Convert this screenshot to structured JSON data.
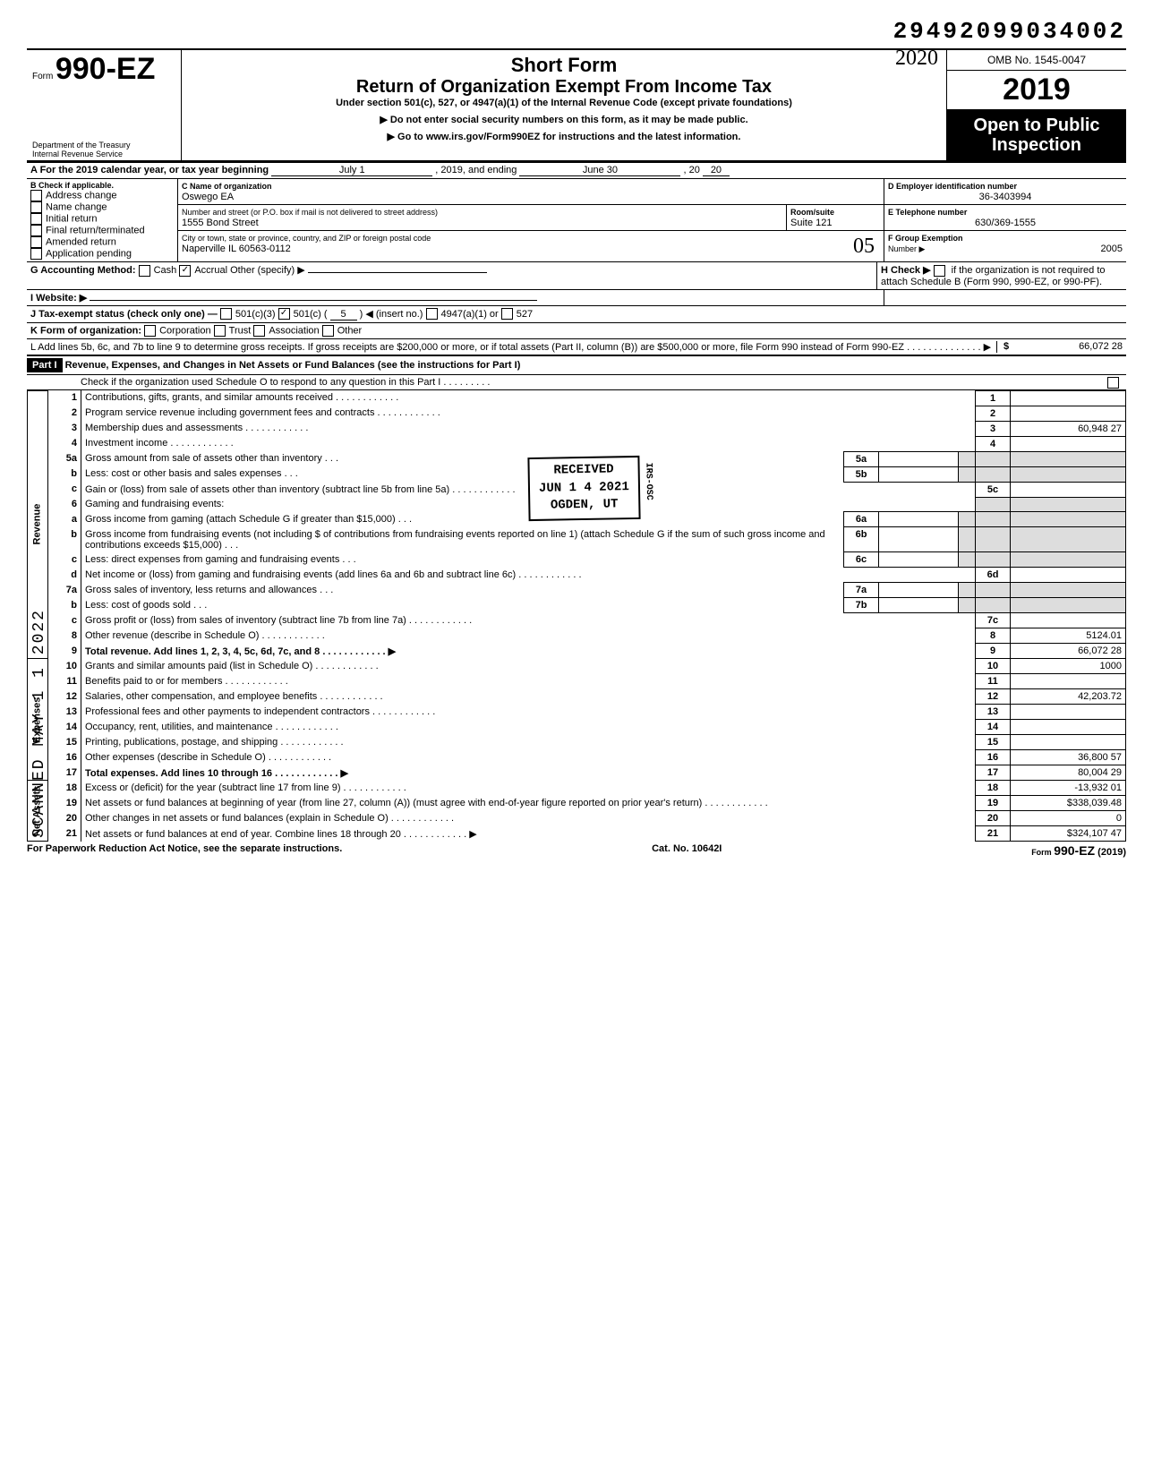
{
  "top_number": "29492099034002",
  "form": {
    "form_label": "Form",
    "form_number": "990-EZ",
    "dept": "Department of the Treasury\nInternal Revenue Service",
    "short": "Short Form",
    "title": "Return of Organization Exempt From Income Tax",
    "sub": "Under section 501(c), 527, or 4947(a)(1) of the Internal Revenue Code (except private foundations)",
    "note1": "Do not enter social security numbers on this form, as it may be made public.",
    "note2": "Go to www.irs.gov/Form990EZ for instructions and the latest information.",
    "omb": "OMB No. 1545-0047",
    "year": "2019",
    "open": "Open to Public Inspection",
    "hand_year": "2020"
  },
  "A": {
    "text": "A For the 2019 calendar year, or tax year beginning",
    "begin": "July 1",
    "mid": ", 2019, and ending",
    "end": "June 30",
    "endyear": "20",
    "endyy": "20"
  },
  "B": {
    "label": "B Check if applicable.",
    "opts": [
      "Address change",
      "Name change",
      "Initial return",
      "Final return/terminated",
      "Amended return",
      "Application pending"
    ]
  },
  "C": {
    "label": "C Name of organization",
    "value": "Oswego EA",
    "addr_label": "Number and street (or P.O. box if mail is not delivered to street address)",
    "addr": "1555 Bond Street",
    "room_label": "Room/suite",
    "room": "Suite 121",
    "city_label": "City or town, state or province, country, and ZIP or foreign postal code",
    "city": "Naperville IL 60563-0112"
  },
  "D": {
    "label": "D Employer identification number",
    "value": "36-3403994"
  },
  "E": {
    "label": "E Telephone number",
    "value": "630/369-1555"
  },
  "F": {
    "label": "F Group Exemption",
    "num_label": "Number ▶",
    "value": "2005"
  },
  "G": {
    "label": "G Accounting Method:",
    "cash": "Cash",
    "accrual": "Accrual",
    "other": "Other (specify) ▶"
  },
  "H": {
    "label": "H Check ▶",
    "text": "if the organization is not required to attach Schedule B (Form 990, 990-EZ, or 990-PF)."
  },
  "I": {
    "label": "I Website: ▶"
  },
  "J": {
    "label": "J Tax-exempt status (check only one) —",
    "c3": "501(c)(3)",
    "c": "501(c) (",
    "cnum": "5",
    "cend": ") ◀ (insert no.)",
    "a": "4947(a)(1) or",
    "s": "527"
  },
  "K": {
    "label": "K Form of organization:",
    "opts": [
      "Corporation",
      "Trust",
      "Association",
      "Other"
    ]
  },
  "L": {
    "text": "L Add lines 5b, 6c, and 7b to line 9 to determine gross receipts. If gross receipts are $200,000 or more, or if total assets (Part II, column (B)) are $500,000 or more, file Form 990 instead of Form 990-EZ",
    "dollar": "$",
    "value": "66,072 28"
  },
  "part1": {
    "header": "Part I",
    "title": "Revenue, Expenses, and Changes in Net Assets or Fund Balances (see the instructions for Part I)",
    "check": "Check if the organization used Schedule O to respond to any question in this Part I"
  },
  "stamp": {
    "l1": "RECEIVED",
    "l2": "JUN 1 4 2021",
    "l3": "OGDEN, UT",
    "side": "IRS-OSC"
  },
  "scanned": "SCANNED  MAY 1 1 2022",
  "sections": {
    "revenue": "Revenue",
    "expenses": "Expenses",
    "netassets": "Net Assets"
  },
  "lines": {
    "1": {
      "d": "Contributions, gifts, grants, and similar amounts received",
      "n": "1",
      "a": ""
    },
    "2": {
      "d": "Program service revenue including government fees and contracts",
      "n": "2",
      "a": ""
    },
    "3": {
      "d": "Membership dues and assessments",
      "n": "3",
      "a": "60,948 27"
    },
    "4": {
      "d": "Investment income",
      "n": "4",
      "a": ""
    },
    "5a": {
      "d": "Gross amount from sale of assets other than inventory",
      "sn": "5a"
    },
    "5b": {
      "d": "Less: cost or other basis and sales expenses",
      "sn": "5b"
    },
    "5c": {
      "d": "Gain or (loss) from sale of assets other than inventory (subtract line 5b from line 5a)",
      "n": "5c",
      "a": ""
    },
    "6": {
      "d": "Gaming and fundraising events:"
    },
    "6a": {
      "d": "Gross income from gaming (attach Schedule G if greater than $15,000)",
      "sn": "6a"
    },
    "6b": {
      "d": "Gross income from fundraising events (not including  $                    of contributions from fundraising events reported on line 1) (attach Schedule G if the sum of such gross income and contributions exceeds $15,000)",
      "sn": "6b"
    },
    "6c": {
      "d": "Less: direct expenses from gaming and fundraising events",
      "sn": "6c"
    },
    "6d": {
      "d": "Net income or (loss) from gaming and fundraising events (add lines 6a and 6b and subtract line 6c)",
      "n": "6d",
      "a": ""
    },
    "7a": {
      "d": "Gross sales of inventory, less returns and allowances",
      "sn": "7a"
    },
    "7b": {
      "d": "Less: cost of goods sold",
      "sn": "7b"
    },
    "7c": {
      "d": "Gross profit or (loss) from sales of inventory (subtract line 7b from line 7a)",
      "n": "7c",
      "a": ""
    },
    "8": {
      "d": "Other revenue (describe in Schedule O)",
      "n": "8",
      "a": "5124.01"
    },
    "9": {
      "d": "Total revenue. Add lines 1, 2, 3, 4, 5c, 6d, 7c, and 8",
      "n": "9",
      "a": "66,072 28",
      "bold": true,
      "arrow": true
    },
    "10": {
      "d": "Grants and similar amounts paid (list in Schedule O)",
      "n": "10",
      "a": "1000"
    },
    "11": {
      "d": "Benefits paid to or for members",
      "n": "11",
      "a": ""
    },
    "12": {
      "d": "Salaries, other compensation, and employee benefits",
      "n": "12",
      "a": "42,203.72"
    },
    "13": {
      "d": "Professional fees and other payments to independent contractors",
      "n": "13",
      "a": ""
    },
    "14": {
      "d": "Occupancy, rent, utilities, and maintenance",
      "n": "14",
      "a": ""
    },
    "15": {
      "d": "Printing, publications, postage, and shipping",
      "n": "15",
      "a": ""
    },
    "16": {
      "d": "Other expenses (describe in Schedule O)",
      "n": "16",
      "a": "36,800 57"
    },
    "17": {
      "d": "Total expenses. Add lines 10 through 16",
      "n": "17",
      "a": "80,004 29",
      "bold": true,
      "arrow": true
    },
    "18": {
      "d": "Excess or (deficit) for the year (subtract line 17 from line 9)",
      "n": "18",
      "a": "-13,932 01"
    },
    "19": {
      "d": "Net assets or fund balances at beginning of year (from line 27, column (A)) (must agree with end-of-year figure reported on prior year's return)",
      "n": "19",
      "a": "$338,039.48"
    },
    "20": {
      "d": "Other changes in net assets or fund balances (explain in Schedule O)",
      "n": "20",
      "a": "0"
    },
    "21": {
      "d": "Net assets or fund balances at end of year. Combine lines 18 through 20",
      "n": "21",
      "a": "$324,107 47",
      "arrow": true
    }
  },
  "footer": {
    "left": "For Paperwork Reduction Act Notice, see the separate instructions.",
    "mid": "Cat. No. 10642I",
    "right": "Form 990-EZ (2019)"
  },
  "hand_cd": "05",
  "colors": {
    "black": "#000000",
    "shade": "#dddddd"
  }
}
